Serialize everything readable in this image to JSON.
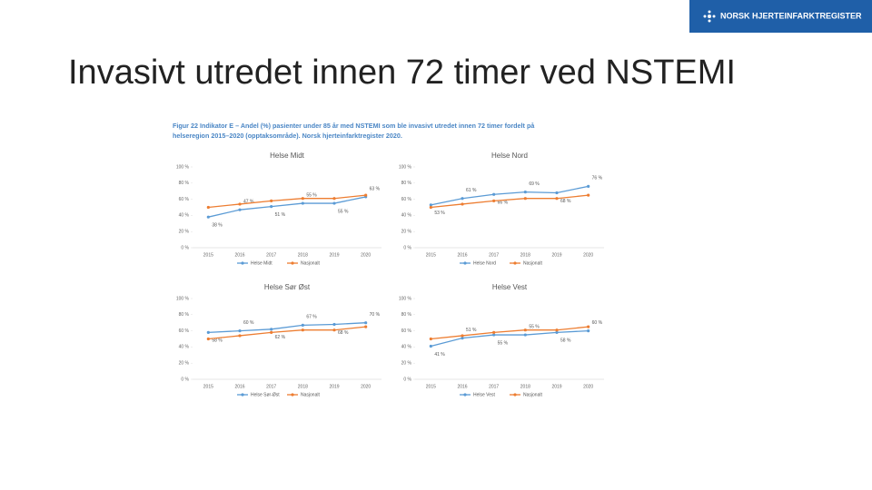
{
  "slide": {
    "title": "Invasivt utredet innen 72 timer ved NSTEMI",
    "logo": "NORSK HJERTEINFARKTREGISTER",
    "caption": [
      "Figur 22 Indikator E – Andel (%) pasienter under 85 år med NSTEMI som ble invasivt utredet innen 72 timer fordelt på",
      "helseregion 2015–2020 (opptaksområde). Norsk hjerteinfarktregister 2020."
    ]
  },
  "chart_data": [
    {
      "type": "line",
      "title": "Helse Midt",
      "categories": [
        "2015",
        "2016",
        "2017",
        "2018",
        "2019",
        "2020"
      ],
      "ylim": [
        0,
        100
      ],
      "yticks": [
        {
          "value": 0,
          "label": "0 %"
        },
        {
          "value": 20,
          "label": "20 %"
        },
        {
          "value": 40,
          "label": "40 %"
        },
        {
          "value": 60,
          "label": "60 %"
        },
        {
          "value": 80,
          "label": "80 %"
        },
        {
          "value": 100,
          "label": "100 %"
        }
      ],
      "grid": false,
      "series": [
        {
          "name": "Helse Midt",
          "color": "#5b9bd5",
          "values": [
            38,
            47,
            51,
            55,
            55,
            63
          ],
          "value_labels": [
            "38 %",
            "47 %",
            "51 %",
            "55 %",
            "55 %",
            "63 %"
          ]
        },
        {
          "name": "Nasjonalt",
          "color": "#ed7d31",
          "values": [
            50,
            54,
            58,
            61,
            61,
            65
          ]
        }
      ]
    },
    {
      "type": "line",
      "title": "Helse Nord",
      "categories": [
        "2015",
        "2016",
        "2017",
        "2018",
        "2019",
        "2020"
      ],
      "ylim": [
        0,
        100
      ],
      "yticks": [
        {
          "value": 0,
          "label": "0 %"
        },
        {
          "value": 20,
          "label": "20 %"
        },
        {
          "value": 40,
          "label": "40 %"
        },
        {
          "value": 60,
          "label": "60 %"
        },
        {
          "value": 80,
          "label": "80 %"
        },
        {
          "value": 100,
          "label": "100 %"
        }
      ],
      "grid": false,
      "series": [
        {
          "name": "Helse Nord",
          "color": "#5b9bd5",
          "values": [
            53,
            61,
            66,
            69,
            68,
            76
          ],
          "value_labels": [
            "53 %",
            "61 %",
            "66 %",
            "69 %",
            "68 %",
            "76 %"
          ]
        },
        {
          "name": "Nasjonalt",
          "color": "#ed7d31",
          "values": [
            50,
            54,
            58,
            61,
            61,
            65
          ]
        }
      ]
    },
    {
      "type": "line",
      "title": "Helse Sør Øst",
      "categories": [
        "2015",
        "2016",
        "2017",
        "2018",
        "2019",
        "2020"
      ],
      "ylim": [
        0,
        100
      ],
      "yticks": [
        {
          "value": 0,
          "label": "0 %"
        },
        {
          "value": 20,
          "label": "20 %"
        },
        {
          "value": 40,
          "label": "40 %"
        },
        {
          "value": 60,
          "label": "60 %"
        },
        {
          "value": 80,
          "label": "80 %"
        },
        {
          "value": 100,
          "label": "100 %"
        }
      ],
      "grid": false,
      "series": [
        {
          "name": "Helse Sør-Øst",
          "color": "#5b9bd5",
          "values": [
            58,
            60,
            62,
            67,
            68,
            70
          ],
          "value_labels": [
            "58 %",
            "60 %",
            "62 %",
            "67 %",
            "68 %",
            "70 %"
          ]
        },
        {
          "name": "Nasjonalt",
          "color": "#ed7d31",
          "values": [
            50,
            54,
            58,
            61,
            61,
            65
          ]
        }
      ]
    },
    {
      "type": "line",
      "title": "Helse Vest",
      "categories": [
        "2015",
        "2016",
        "2017",
        "2018",
        "2019",
        "2020"
      ],
      "ylim": [
        0,
        100
      ],
      "yticks": [
        {
          "value": 0,
          "label": "0 %"
        },
        {
          "value": 20,
          "label": "20 %"
        },
        {
          "value": 40,
          "label": "40 %"
        },
        {
          "value": 60,
          "label": "60 %"
        },
        {
          "value": 80,
          "label": "80 %"
        },
        {
          "value": 100,
          "label": "100 %"
        }
      ],
      "grid": false,
      "series": [
        {
          "name": "Helse Vest",
          "color": "#5b9bd5",
          "values": [
            41,
            51,
            55,
            55,
            58,
            60
          ],
          "value_labels": [
            "41 %",
            "51 %",
            "55 %",
            "55 %",
            "58 %",
            "60 %"
          ]
        },
        {
          "name": "Nasjonalt",
          "color": "#ed7d31",
          "values": [
            50,
            54,
            58,
            61,
            61,
            65
          ]
        }
      ]
    }
  ]
}
